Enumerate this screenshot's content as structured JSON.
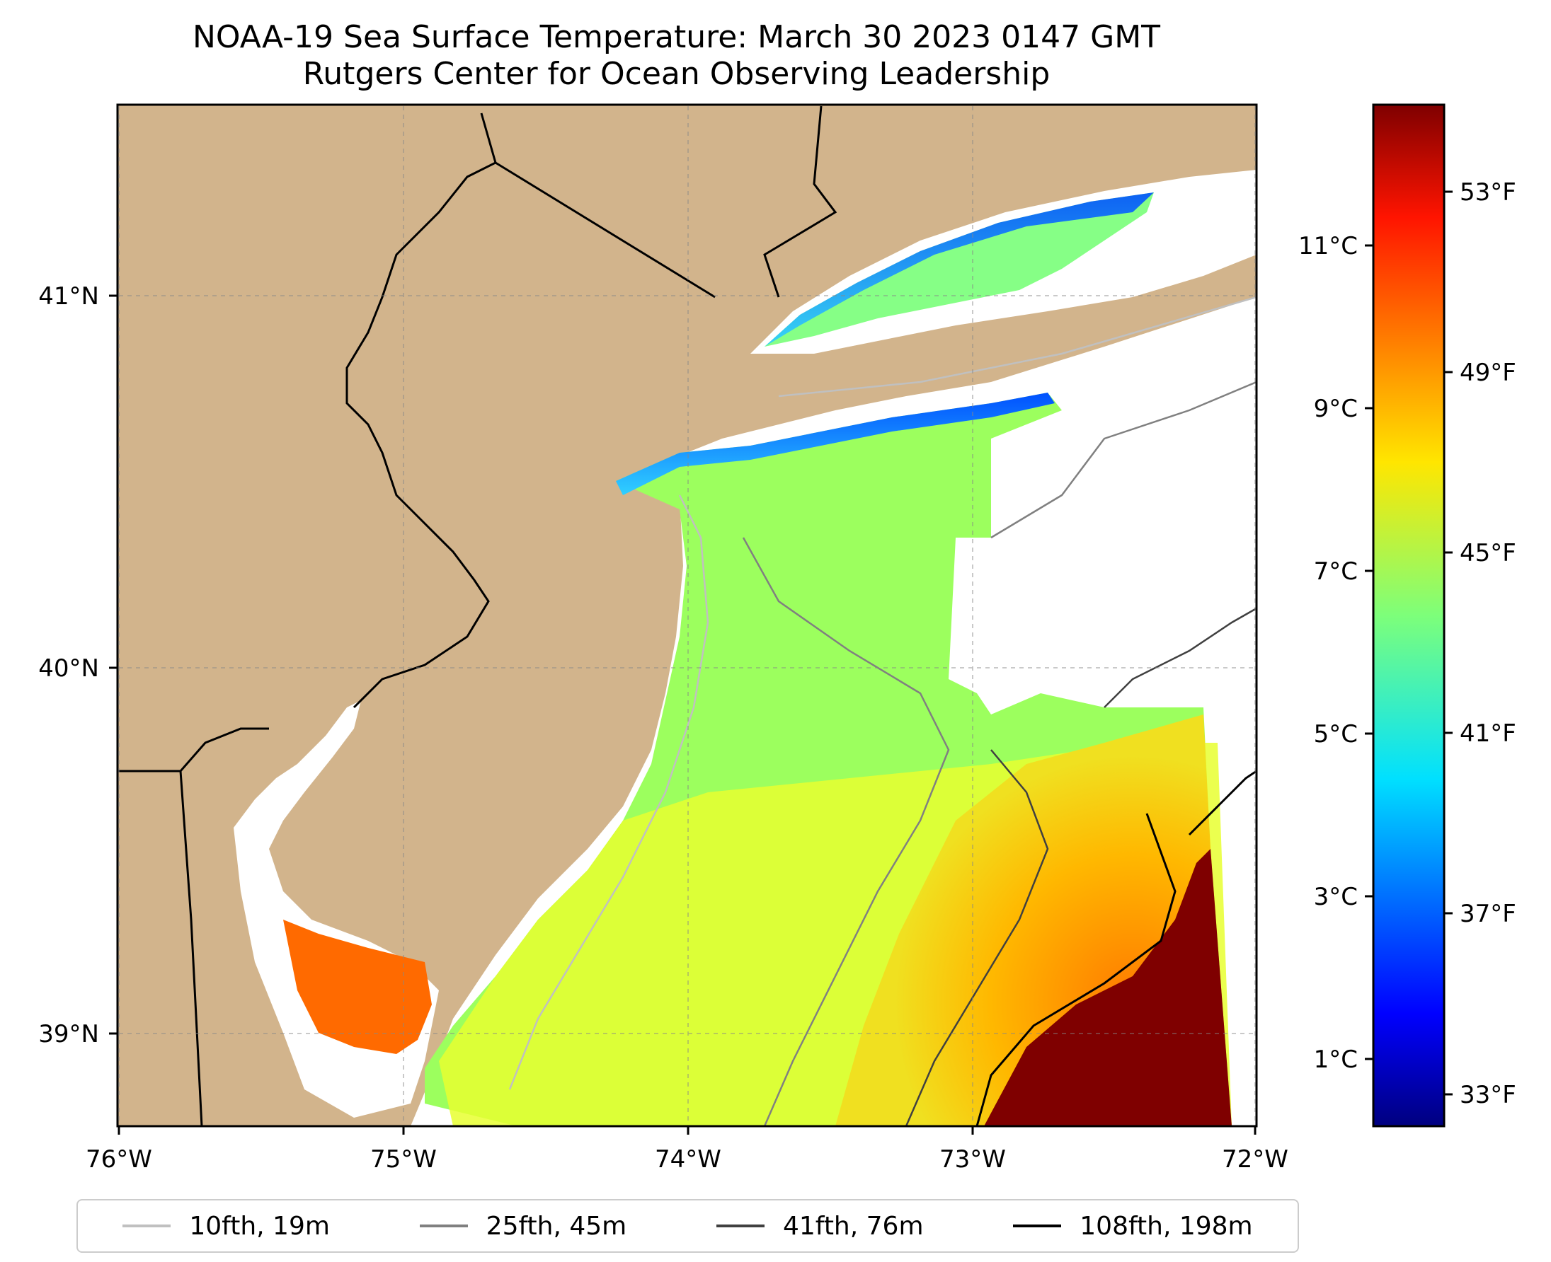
{
  "title": {
    "line1": "NOAA-19 Sea Surface Temperature: March 30 2023 0147 GMT",
    "line2": "Rutgers Center for Ocean Observing Leadership"
  },
  "axes": {
    "x_ticks": [
      "76°W",
      "75°W",
      "74°W",
      "73°W",
      "72°W"
    ],
    "y_ticks": [
      "41°N",
      "40°N",
      "39°N"
    ]
  },
  "colorbar": {
    "celsius_ticks": [
      "11°C",
      "9°C",
      "7°C",
      "5°C",
      "3°C",
      "1°C"
    ],
    "fahrenheit_ticks": [
      "53°F",
      "49°F",
      "45°F",
      "41°F",
      "37°F",
      "33°F"
    ],
    "colormap": "jet"
  },
  "legend": [
    {
      "label": "10fth, 19m",
      "color": "#c0c0c0"
    },
    {
      "label": "25fth, 45m",
      "color": "#808080"
    },
    {
      "label": "41fth, 76m",
      "color": "#404040"
    },
    {
      "label": "108fth, 198m",
      "color": "#000000"
    }
  ],
  "colors": {
    "land": "#d2b48c",
    "ocean_nodata": "#ffffff",
    "border": "#000000"
  }
}
